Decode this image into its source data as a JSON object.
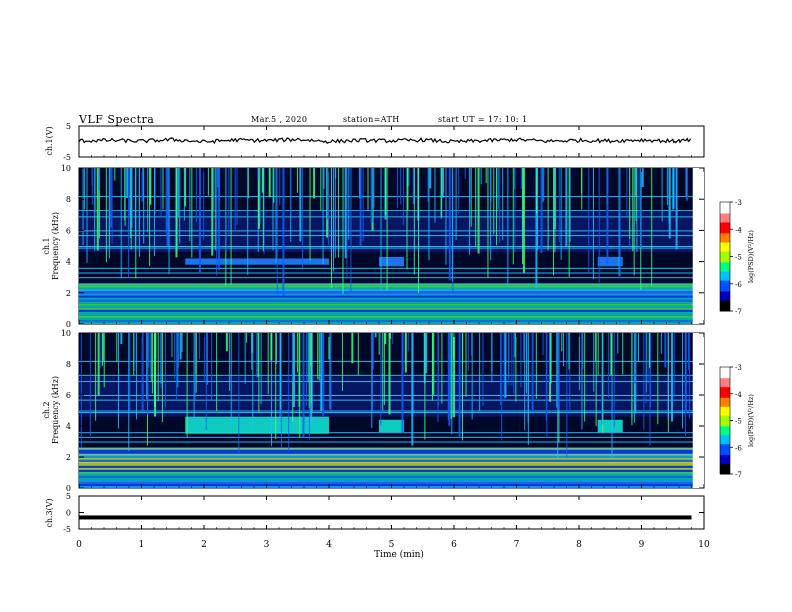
{
  "header": {
    "title": "VLF  Spectra",
    "date": "Mar.5  , 2020",
    "station": "station=ATH",
    "start": "start  UT  =    17: 10: 1"
  },
  "colors": {
    "spec_low": "#000000",
    "spec_mid": "#1040ff",
    "spec_high": "#00e060",
    "spec_peak": "#ffff00",
    "colorbar": [
      "#000000",
      "#0000c0",
      "#0050ff",
      "#00c0ff",
      "#00ff80",
      "#a0ff00",
      "#ffff00",
      "#ff8000",
      "#ff0000",
      "#ff8080",
      "#ffffff"
    ]
  },
  "chart_data": [
    {
      "type": "line",
      "ylabel": "ch.1(V)",
      "ylim": [
        -5,
        5
      ],
      "yticks": [
        "5",
        "-5"
      ],
      "x": [
        0,
        0.5,
        1,
        1.5,
        2,
        2.5,
        3,
        3.5,
        4,
        4.5,
        5,
        5.5,
        6,
        6.5,
        7,
        7.5,
        8,
        8.5,
        9,
        9.5,
        9.8
      ],
      "values": [
        0.2,
        0.4,
        0.1,
        0.6,
        -0.1,
        0.5,
        0.3,
        0.7,
        0.0,
        0.4,
        0.2,
        0.5,
        -0.1,
        0.3,
        0.6,
        0.1,
        0.4,
        0.2,
        0.5,
        0.1,
        0.4
      ]
    },
    {
      "type": "heatmap",
      "ylabel": "ch.1\nFrequency (kHz)",
      "ylim": [
        0,
        10
      ],
      "yticks": [
        "0",
        "2",
        "4",
        "6",
        "8",
        "10"
      ],
      "xlim": [
        0,
        10
      ],
      "colorbar": {
        "label": "log(PSD)(V²/Hz)",
        "range": [
          -7,
          -3
        ],
        "ticks": [
          "-3",
          "-4",
          "-5",
          "-6",
          "-7"
        ]
      },
      "hiss_bands": [
        {
          "t": [
            1.7,
            4.0
          ],
          "f": [
            3.8,
            4.2
          ]
        },
        {
          "t": [
            4.8,
            5.2
          ],
          "f": [
            3.7,
            4.3
          ]
        },
        {
          "t": [
            8.3,
            8.7
          ],
          "f": [
            3.7,
            4.3
          ]
        }
      ]
    },
    {
      "type": "heatmap",
      "ylabel": "ch.2\nFrequency (kHz)",
      "ylim": [
        0,
        10
      ],
      "yticks": [
        "0",
        "2",
        "4",
        "6",
        "8",
        "10"
      ],
      "xlim": [
        0,
        10
      ],
      "colorbar": {
        "label": "log(PSD)(V²/Hz)",
        "range": [
          -7,
          -3
        ],
        "ticks": [
          "-3",
          "-4",
          "-5",
          "-6",
          "-7"
        ]
      },
      "hiss_bands": [
        {
          "t": [
            1.7,
            4.0
          ],
          "f": [
            3.5,
            4.6
          ]
        },
        {
          "t": [
            4.8,
            5.2
          ],
          "f": [
            3.6,
            4.4
          ]
        },
        {
          "t": [
            8.3,
            8.7
          ],
          "f": [
            3.6,
            4.4
          ]
        }
      ]
    },
    {
      "type": "line",
      "ylabel": "ch.3(V)",
      "ylim": [
        -5,
        5
      ],
      "yticks": [
        "5",
        "0",
        "-5"
      ],
      "x": [
        0,
        9.8
      ],
      "values": [
        -1.5,
        -1.5
      ],
      "xlabel": "Time  (min)",
      "xticks": [
        "0",
        "1",
        "2",
        "3",
        "4",
        "5",
        "6",
        "7",
        "8",
        "9",
        "10"
      ],
      "xlim": [
        0,
        10
      ]
    }
  ]
}
